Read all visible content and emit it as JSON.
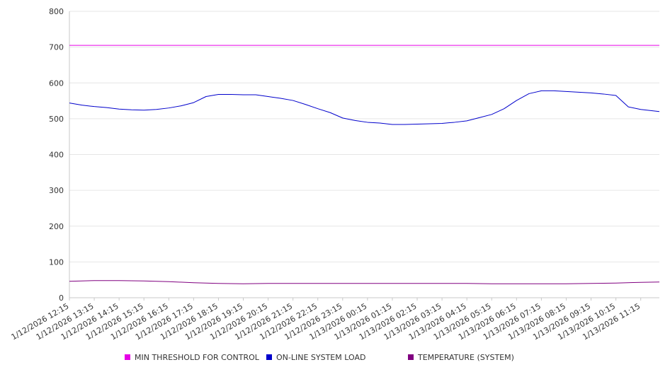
{
  "chart_data": {
    "type": "line",
    "title": "",
    "xlabel": "",
    "ylabel": "",
    "ylim": [
      0,
      800
    ],
    "yticks": [
      0,
      100,
      200,
      300,
      400,
      500,
      600,
      700,
      800
    ],
    "grid": true,
    "legend_position": "bottom",
    "x_range": [
      "1/12/2026 12:15",
      "1/13/2026 12:00"
    ],
    "x_tick_labels": [
      "1/12/2026 12:15",
      "1/12/2026 13:15",
      "1/12/2026 14:15",
      "1/12/2026 15:15",
      "1/12/2026 16:15",
      "1/12/2026 17:15",
      "1/12/2026 18:15",
      "1/12/2026 19:15",
      "1/12/2026 20:15",
      "1/12/2026 21:15",
      "1/12/2026 22:15",
      "1/12/2026 23:15",
      "1/13/2026 00:15",
      "1/13/2026 01:15",
      "1/13/2026 02:15",
      "1/13/2026 03:15",
      "1/13/2026 04:15",
      "1/13/2026 05:15",
      "1/13/2026 06:15",
      "1/13/2026 07:15",
      "1/13/2026 08:15",
      "1/13/2026 09:15",
      "1/13/2026 10:15",
      "1/13/2026 11:15"
    ],
    "series": [
      {
        "name": "MIN THRESHOLD FOR CONTROL",
        "color": "#e600e6",
        "x": [
          "1/12/2026 12:15",
          "1/13/2026 12:00"
        ],
        "values": [
          705,
          705
        ]
      },
      {
        "name": "ON-LINE SYSTEM LOAD",
        "color": "#0000cc",
        "x": [
          "1/12/2026 12:15",
          "1/12/2026 12:45",
          "1/12/2026 13:15",
          "1/12/2026 13:45",
          "1/12/2026 14:15",
          "1/12/2026 14:45",
          "1/12/2026 15:15",
          "1/12/2026 15:45",
          "1/12/2026 16:15",
          "1/12/2026 16:45",
          "1/12/2026 17:15",
          "1/12/2026 17:45",
          "1/12/2026 18:15",
          "1/12/2026 18:45",
          "1/12/2026 19:15",
          "1/12/2026 19:45",
          "1/12/2026 20:15",
          "1/12/2026 20:45",
          "1/12/2026 21:15",
          "1/12/2026 21:45",
          "1/12/2026 22:15",
          "1/12/2026 22:45",
          "1/12/2026 23:15",
          "1/12/2026 23:45",
          "1/13/2026 00:15",
          "1/13/2026 00:45",
          "1/13/2026 01:15",
          "1/13/2026 01:45",
          "1/13/2026 02:15",
          "1/13/2026 02:45",
          "1/13/2026 03:15",
          "1/13/2026 03:45",
          "1/13/2026 04:15",
          "1/13/2026 04:45",
          "1/13/2026 05:15",
          "1/13/2026 05:45",
          "1/13/2026 06:15",
          "1/13/2026 06:45",
          "1/13/2026 07:15",
          "1/13/2026 07:45",
          "1/13/2026 08:15",
          "1/13/2026 08:45",
          "1/13/2026 09:15",
          "1/13/2026 09:45",
          "1/13/2026 10:15",
          "1/13/2026 10:45",
          "1/13/2026 11:15",
          "1/13/2026 11:45",
          "1/13/2026 12:00"
        ],
        "values": [
          544,
          538,
          534,
          531,
          527,
          525,
          524,
          526,
          530,
          536,
          545,
          562,
          568,
          568,
          567,
          567,
          562,
          557,
          551,
          540,
          528,
          517,
          502,
          495,
          490,
          488,
          484,
          484,
          485,
          486,
          487,
          490,
          494,
          503,
          512,
          528,
          551,
          570,
          578,
          578,
          576,
          574,
          572,
          569,
          565,
          533,
          526,
          522,
          520
        ]
      },
      {
        "name": "TEMPERATURE (SYSTEM)",
        "color": "#800080",
        "x": [
          "1/12/2026 12:15",
          "1/12/2026 13:15",
          "1/12/2026 14:15",
          "1/12/2026 15:15",
          "1/12/2026 16:15",
          "1/12/2026 17:15",
          "1/12/2026 18:15",
          "1/12/2026 19:15",
          "1/12/2026 20:15",
          "1/12/2026 21:15",
          "1/12/2026 22:15",
          "1/12/2026 23:15",
          "1/13/2026 00:15",
          "1/13/2026 01:15",
          "1/13/2026 02:15",
          "1/13/2026 03:15",
          "1/13/2026 04:15",
          "1/13/2026 05:15",
          "1/13/2026 06:15",
          "1/13/2026 07:15",
          "1/13/2026 08:15",
          "1/13/2026 09:15",
          "1/13/2026 10:15",
          "1/13/2026 11:15",
          "1/13/2026 12:00"
        ],
        "values": [
          46,
          48,
          48,
          47,
          45,
          42,
          40,
          39,
          40,
          40,
          40,
          40,
          40,
          40,
          40,
          40,
          40,
          39,
          39,
          39,
          39,
          40,
          41,
          43,
          44
        ]
      }
    ]
  }
}
